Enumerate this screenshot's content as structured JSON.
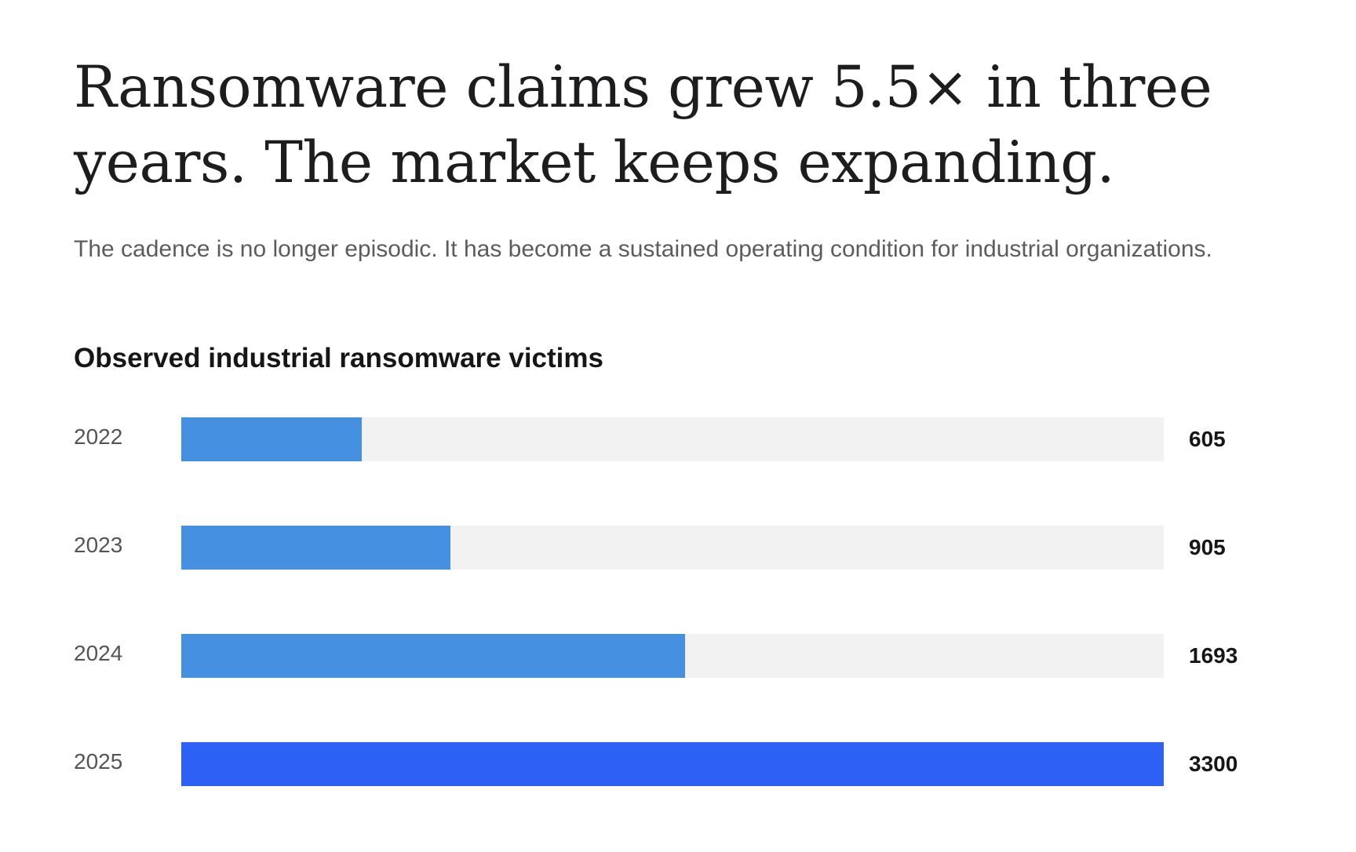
{
  "headline": "Ransomware claims grew 5.5× in three years. The market keeps expanding.",
  "subtitle": "The cadence is no longer episodic. It has become a sustained operating condition for industrial organizations.",
  "colors": {
    "bar_default": "#4590e0",
    "bar_highlight": "#2d60f5",
    "track": "#f2f2f2"
  },
  "chart_data": {
    "type": "bar",
    "orientation": "horizontal",
    "title": "Observed industrial ransomware victims",
    "categories": [
      "2022",
      "2023",
      "2024",
      "2025"
    ],
    "values": [
      605,
      905,
      1693,
      3300
    ],
    "value_labels": [
      "605",
      "905",
      "1693",
      "3300"
    ],
    "xlim": [
      0,
      3300
    ],
    "highlight_category": "2025",
    "grid": false,
    "legend": "none"
  }
}
